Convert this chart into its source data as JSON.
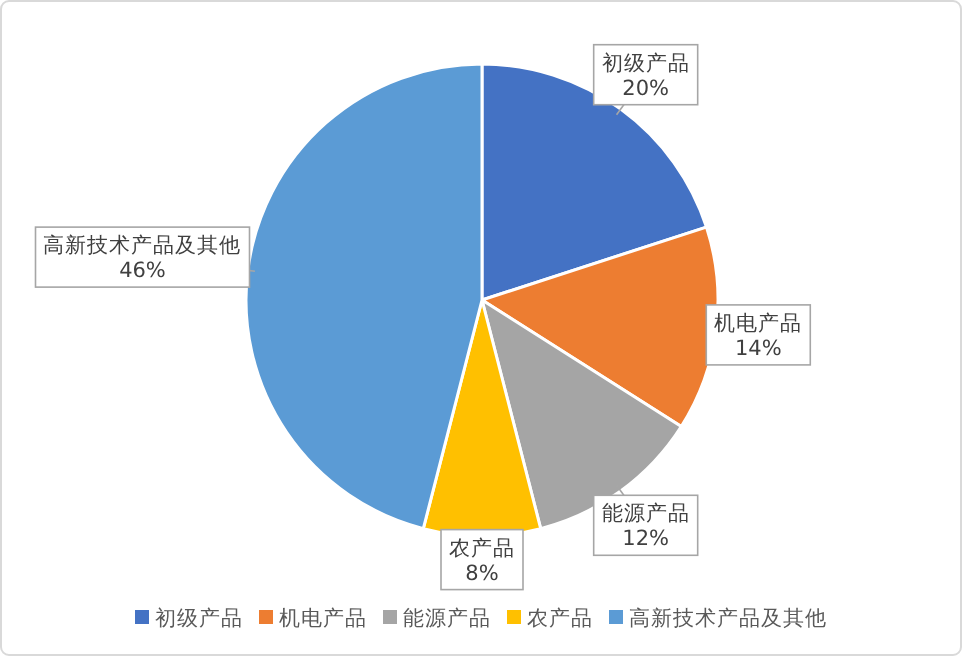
{
  "chart_data": {
    "type": "pie",
    "categories": [
      "初级产品",
      "机电产品",
      "能源产品",
      "农产品",
      "高新技术产品及其他"
    ],
    "values": [
      20,
      14,
      12,
      8,
      46
    ],
    "colors": [
      "#4472c4",
      "#ed7d31",
      "#a5a5a5",
      "#ffc000",
      "#5b9bd5"
    ],
    "value_labels": [
      "20%",
      "14%",
      "12%",
      "8%",
      "46%"
    ],
    "legend": "bottom"
  }
}
